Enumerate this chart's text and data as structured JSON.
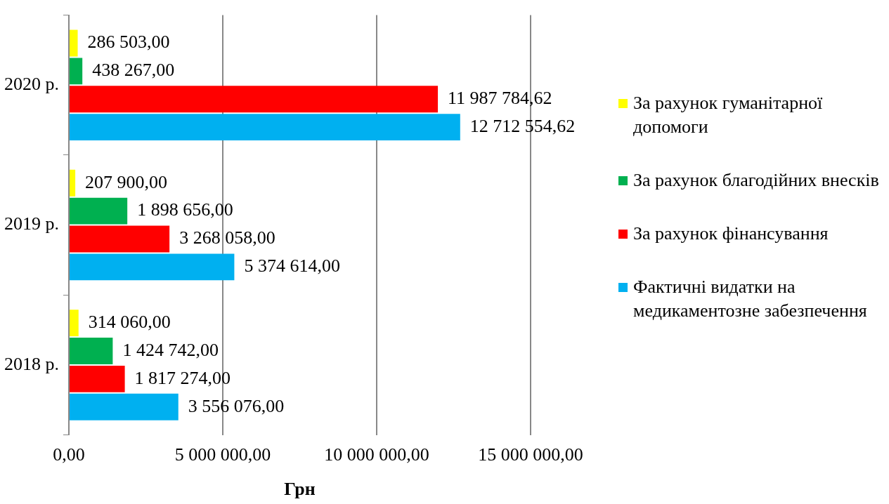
{
  "chart_data": {
    "type": "bar",
    "orientation": "horizontal",
    "xlabel": "Грн",
    "categories": [
      "2020 р.",
      "2019 р.",
      "2018 р."
    ],
    "series": [
      {
        "name": "За рахунок гуманітарної допомоги",
        "color": "#ffff00",
        "values": [
          286503.0,
          207900.0,
          314060.0
        ],
        "value_labels": [
          "286 503,00",
          "207 900,00",
          "314 060,00"
        ]
      },
      {
        "name": "За рахунок благодійних внесків",
        "color": "#00b050",
        "values": [
          438267.0,
          1898656.0,
          1424742.0
        ],
        "value_labels": [
          "438 267,00",
          "1 898 656,00",
          "1 424 742,00"
        ]
      },
      {
        "name": "За рахунок фінансування",
        "color": "#ff0000",
        "values": [
          11987784.62,
          3268058.0,
          1817274.0
        ],
        "value_labels": [
          "11 987 784,62",
          "3 268 058,00",
          "1 817 274,00"
        ]
      },
      {
        "name": "Фактичні видатки на медикаментозне забезпечення",
        "color": "#00b0f0",
        "values": [
          12712554.62,
          5374614.0,
          3556076.0
        ],
        "value_labels": [
          "12 712 554,62",
          "5 374 614,00",
          "3 556 076,00"
        ]
      }
    ],
    "xlim": [
      0,
      15000000
    ],
    "xticks": [
      {
        "value": 0,
        "label": "0,00"
      },
      {
        "value": 5000000,
        "label": "5 000 000,00"
      },
      {
        "value": 10000000,
        "label": "10 000 000,00"
      },
      {
        "value": 15000000,
        "label": "15 000 000,00"
      }
    ],
    "grid": "x",
    "legend": "right"
  }
}
